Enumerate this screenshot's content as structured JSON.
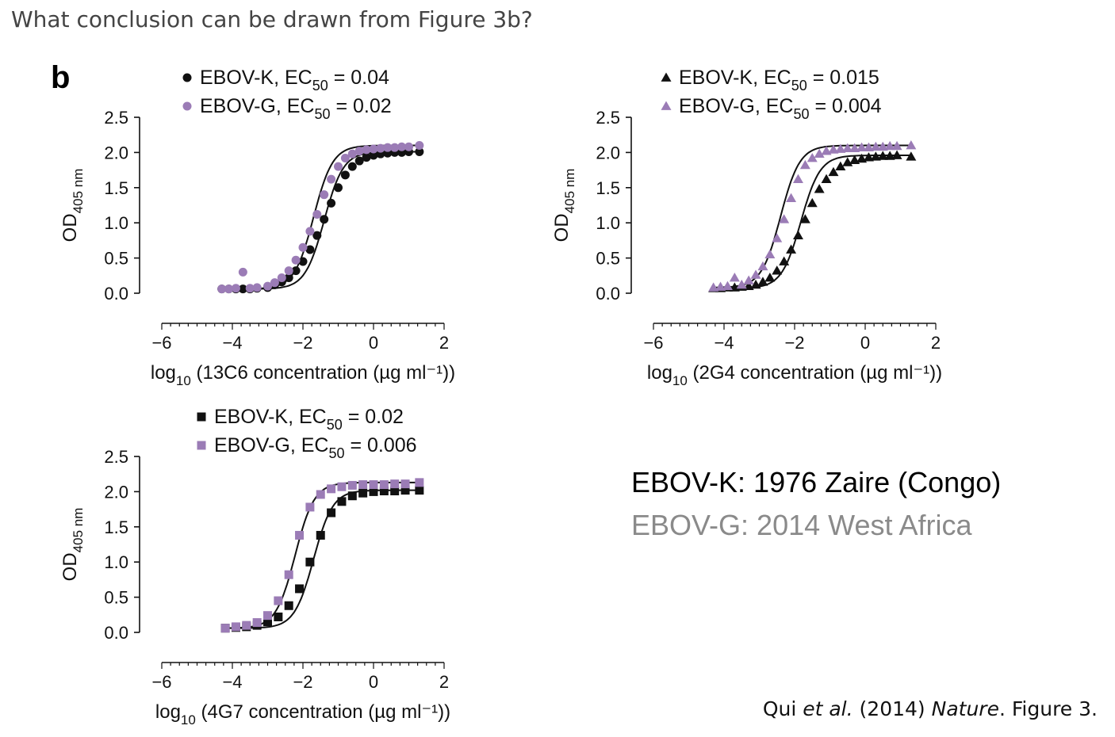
{
  "question": "What conclusion can be drawn from Figure 3b?",
  "panel_letter": "b",
  "notes": {
    "ebov_k": "EBOV-K: 1976 Zaire (Congo)",
    "ebov_g": "EBOV-G: 2014 West Africa"
  },
  "citation": {
    "authors": "Qui",
    "etal": "et al.",
    "year": "(2014)",
    "journal": "Nature",
    "figure": "Figure 3."
  },
  "colors": {
    "ebov_k": "#111111",
    "ebov_g": "#9b7cb6",
    "fit_line": "#111111"
  },
  "chart_data": [
    {
      "type": "scatter",
      "marker": "circle",
      "xlabel_prefix": "log",
      "xlabel_sub": "10",
      "xlabel_suffix": " (13C6 concentration (µg ml⁻¹))",
      "ylabel_main": "OD",
      "ylabel_sub": "405 nm",
      "xlim": [
        -6,
        2
      ],
      "ylim": [
        0,
        2.5
      ],
      "xticks": [
        -6,
        -4,
        -2,
        0,
        2
      ],
      "xtick_labels": [
        "−6",
        "−4",
        "−2",
        "0",
        "2"
      ],
      "yticks": [
        0,
        0.5,
        1.0,
        1.5,
        2.0,
        2.5
      ],
      "ytick_labels": [
        "0.0",
        "0.5",
        "1.0",
        "1.5",
        "2.0",
        "2.5"
      ],
      "legend_placement": "top-center",
      "series": [
        {
          "name": "EBOV-K",
          "ec50_label": ", EC",
          "ec50_sub": "50",
          "ec50_value": " = 0.04",
          "x": [
            -4.3,
            -4.1,
            -3.9,
            -3.7,
            -3.5,
            -3.3,
            -3.0,
            -2.8,
            -2.6,
            -2.4,
            -2.2,
            -2.0,
            -1.8,
            -1.6,
            -1.4,
            -1.2,
            -1.0,
            -0.8,
            -0.6,
            -0.4,
            -0.2,
            0.0,
            0.2,
            0.4,
            0.6,
            0.8,
            1.0,
            1.3
          ],
          "y": [
            0.06,
            0.06,
            0.06,
            0.06,
            0.06,
            0.07,
            0.08,
            0.12,
            0.16,
            0.22,
            0.32,
            0.45,
            0.62,
            0.82,
            1.05,
            1.28,
            1.5,
            1.68,
            1.8,
            1.88,
            1.93,
            1.96,
            1.98,
            1.99,
            2.0,
            2.0,
            2.01,
            2.01
          ],
          "ec50": 0.04
        },
        {
          "name": "EBOV-G",
          "ec50_label": ", EC",
          "ec50_sub": "50",
          "ec50_value": " = 0.02",
          "x": [
            -4.3,
            -4.1,
            -3.9,
            -3.7,
            -3.5,
            -3.3,
            -3.0,
            -2.8,
            -2.6,
            -2.4,
            -2.2,
            -2.0,
            -1.8,
            -1.6,
            -1.4,
            -1.2,
            -1.0,
            -0.8,
            -0.6,
            -0.4,
            -0.2,
            0.0,
            0.2,
            0.4,
            0.6,
            0.8,
            1.0,
            1.3
          ],
          "y": [
            0.06,
            0.06,
            0.07,
            0.3,
            0.07,
            0.08,
            0.1,
            0.15,
            0.22,
            0.32,
            0.47,
            0.65,
            0.88,
            1.12,
            1.4,
            1.62,
            1.8,
            1.92,
            1.98,
            2.02,
            2.04,
            2.05,
            2.06,
            2.07,
            2.07,
            2.08,
            2.08,
            2.1
          ],
          "ec50": 0.02
        }
      ]
    },
    {
      "type": "scatter",
      "marker": "triangle",
      "xlabel_prefix": "log",
      "xlabel_sub": "10",
      "xlabel_suffix": " (2G4 concentration (µg ml⁻¹))",
      "ylabel_main": "OD",
      "ylabel_sub": "405 nm",
      "xlim": [
        -6,
        2
      ],
      "ylim": [
        0,
        2.5
      ],
      "xticks": [
        -6,
        -4,
        -2,
        0,
        2
      ],
      "xtick_labels": [
        "−6",
        "−4",
        "−2",
        "0",
        "2"
      ],
      "yticks": [
        0,
        0.5,
        1.0,
        1.5,
        2.0,
        2.5
      ],
      "ytick_labels": [
        "0.0",
        "0.5",
        "1.0",
        "1.5",
        "2.0",
        "2.5"
      ],
      "legend_placement": "top-center",
      "series": [
        {
          "name": "EBOV-K",
          "ec50_label": ", EC",
          "ec50_sub": "50",
          "ec50_value": " = 0.015",
          "x": [
            -4.3,
            -4.1,
            -3.9,
            -3.7,
            -3.5,
            -3.3,
            -3.1,
            -2.9,
            -2.7,
            -2.5,
            -2.3,
            -2.1,
            -1.9,
            -1.7,
            -1.5,
            -1.3,
            -1.1,
            -0.9,
            -0.7,
            -0.5,
            -0.3,
            -0.1,
            0.1,
            0.3,
            0.5,
            0.7,
            0.9,
            1.3
          ],
          "y": [
            0.07,
            0.07,
            0.08,
            0.08,
            0.09,
            0.1,
            0.12,
            0.16,
            0.22,
            0.32,
            0.45,
            0.62,
            0.82,
            1.05,
            1.28,
            1.48,
            1.62,
            1.72,
            1.8,
            1.86,
            1.89,
            1.91,
            1.93,
            1.94,
            1.95,
            1.95,
            1.96,
            1.94
          ],
          "ec50": 0.015
        },
        {
          "name": "EBOV-G",
          "ec50_label": ", EC",
          "ec50_sub": "50",
          "ec50_value": " = 0.004",
          "x": [
            -4.3,
            -4.1,
            -3.9,
            -3.7,
            -3.5,
            -3.3,
            -3.1,
            -2.9,
            -2.7,
            -2.5,
            -2.3,
            -2.1,
            -1.9,
            -1.7,
            -1.5,
            -1.3,
            -1.1,
            -0.9,
            -0.7,
            -0.5,
            -0.3,
            -0.1,
            0.1,
            0.3,
            0.5,
            0.7,
            0.9,
            1.3
          ],
          "y": [
            0.08,
            0.09,
            0.1,
            0.22,
            0.12,
            0.18,
            0.26,
            0.38,
            0.55,
            0.78,
            1.05,
            1.35,
            1.62,
            1.82,
            1.92,
            1.98,
            2.02,
            2.04,
            2.05,
            2.06,
            2.06,
            2.07,
            2.07,
            2.08,
            2.08,
            2.09,
            2.09,
            2.1
          ],
          "ec50": 0.004
        }
      ]
    },
    {
      "type": "scatter",
      "marker": "square",
      "xlabel_prefix": "log",
      "xlabel_sub": "10",
      "xlabel_suffix": " (4G7 concentration (µg ml⁻¹))",
      "ylabel_main": "OD",
      "ylabel_sub": "405 nm",
      "xlim": [
        -6,
        2
      ],
      "ylim": [
        0,
        2.5
      ],
      "xticks": [
        -6,
        -4,
        -2,
        0,
        2
      ],
      "xtick_labels": [
        "−6",
        "−4",
        "−2",
        "0",
        "2"
      ],
      "yticks": [
        0,
        0.5,
        1.0,
        1.5,
        2.0,
        2.5
      ],
      "ytick_labels": [
        "0.0",
        "0.5",
        "1.0",
        "1.5",
        "2.0",
        "2.5"
      ],
      "legend_placement": "top-center",
      "series": [
        {
          "name": "EBOV-K",
          "ec50_label": ", EC",
          "ec50_sub": "50",
          "ec50_value": " = 0.02",
          "x": [
            -4.2,
            -3.9,
            -3.6,
            -3.3,
            -3.0,
            -2.7,
            -2.4,
            -2.1,
            -1.8,
            -1.5,
            -1.2,
            -0.9,
            -0.6,
            -0.3,
            0.0,
            0.3,
            0.6,
            0.9,
            1.3
          ],
          "y": [
            0.06,
            0.07,
            0.08,
            0.1,
            0.15,
            0.22,
            0.38,
            0.62,
            1.0,
            1.38,
            1.7,
            1.86,
            1.94,
            1.98,
            2.0,
            2.01,
            2.01,
            2.02,
            2.02
          ],
          "ec50": 0.02
        },
        {
          "name": "EBOV-G",
          "ec50_label": ", EC",
          "ec50_sub": "50",
          "ec50_value": " = 0.006",
          "x": [
            -4.2,
            -3.9,
            -3.6,
            -3.3,
            -3.0,
            -2.7,
            -2.4,
            -2.1,
            -1.8,
            -1.5,
            -1.2,
            -0.9,
            -0.6,
            -0.3,
            0.0,
            0.3,
            0.6,
            0.9,
            1.3
          ],
          "y": [
            0.06,
            0.08,
            0.1,
            0.14,
            0.24,
            0.45,
            0.82,
            1.38,
            1.78,
            1.96,
            2.04,
            2.07,
            2.09,
            2.1,
            2.1,
            2.1,
            2.11,
            2.11,
            2.13
          ],
          "ec50": 0.006
        }
      ]
    }
  ]
}
